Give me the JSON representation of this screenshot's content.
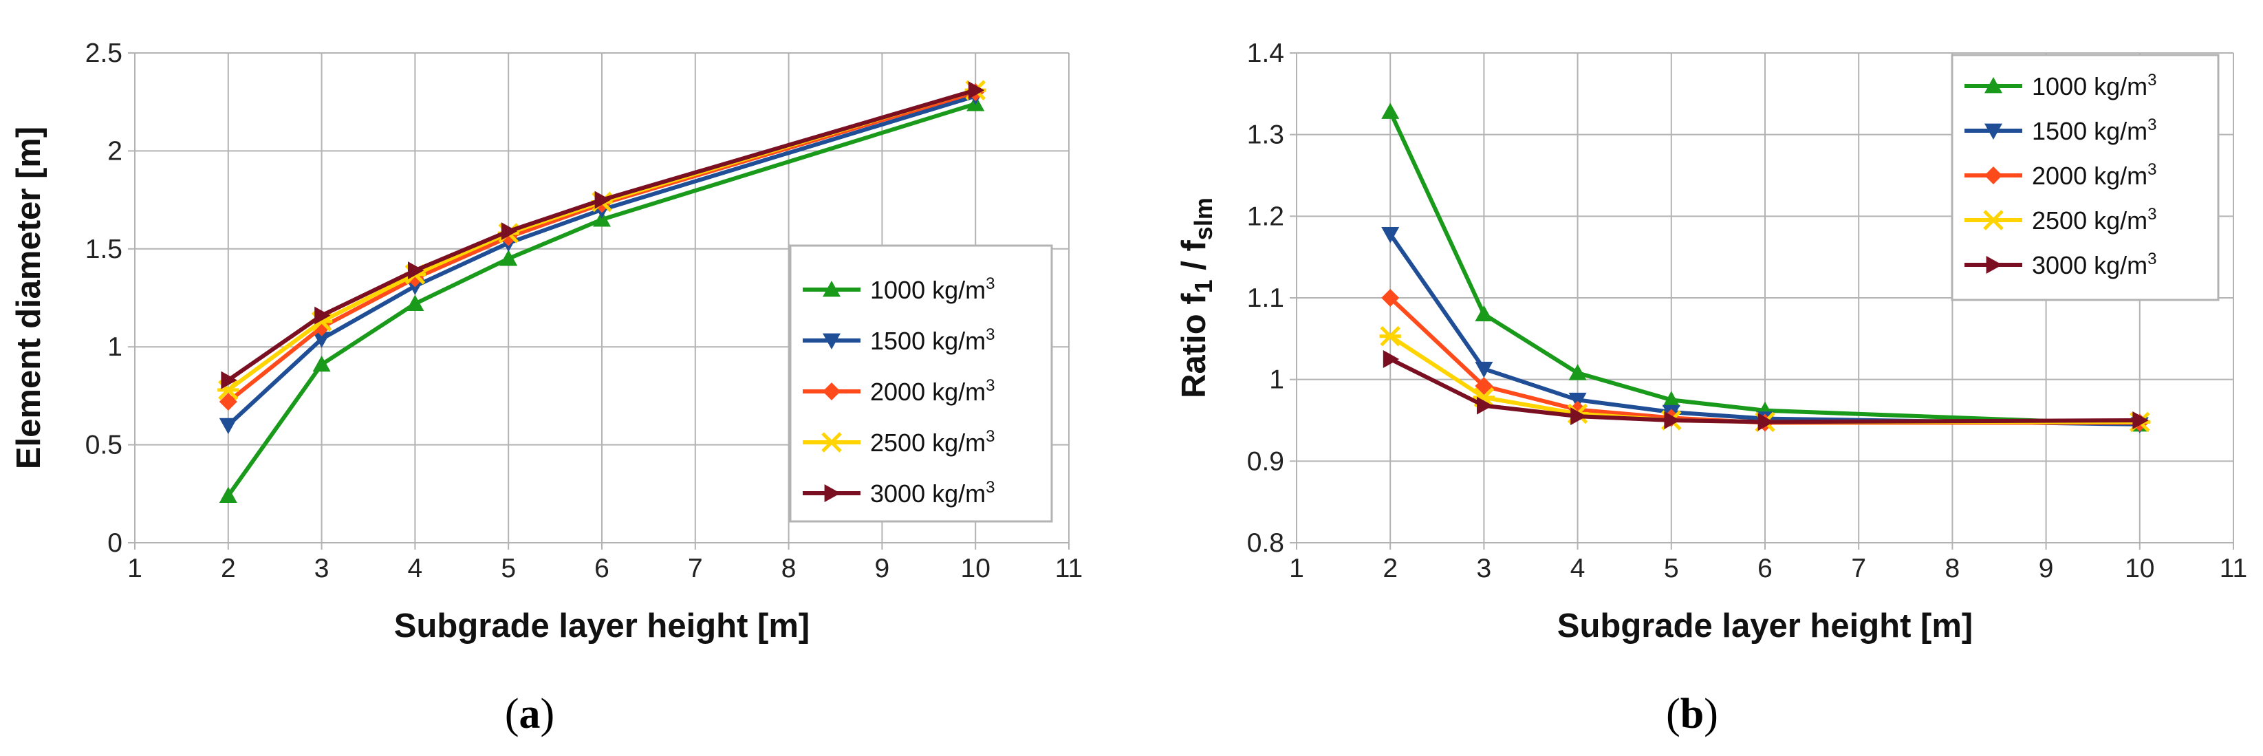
{
  "chart_data": [
    {
      "type": "line",
      "panel": "a",
      "caption_open": "(",
      "caption_letter": "a",
      "caption_close": ")",
      "xlabel": "Subgrade layer height  [m]",
      "ylabel": "Element diameter  [m]",
      "xlim": [
        1,
        11
      ],
      "ylim": [
        0,
        2.5
      ],
      "xticks": [
        1,
        2,
        3,
        4,
        5,
        6,
        7,
        8,
        9,
        10,
        11
      ],
      "yticks": [
        0,
        0.5,
        1,
        1.5,
        2,
        2.5
      ],
      "ytick_labels": [
        "0",
        "0.5",
        "1",
        "1.5",
        "2",
        "2.5"
      ],
      "grid": true,
      "legend_position": "right-middle",
      "x": [
        2,
        3,
        4,
        5,
        6,
        10
      ],
      "series": [
        {
          "name": "1000 kg/m³",
          "label_num": "1000",
          "label_unit": "kg/m",
          "label_sup": "3",
          "color": "#1a9a1a",
          "marker": "triangle-up",
          "values": [
            0.24,
            0.91,
            1.22,
            1.45,
            1.65,
            2.24
          ]
        },
        {
          "name": "1500 kg/m³",
          "label_num": "1500",
          "label_unit": "kg/m",
          "label_sup": "3",
          "color": "#1f4e96",
          "marker": "triangle-down",
          "values": [
            0.6,
            1.04,
            1.31,
            1.53,
            1.7,
            2.28
          ]
        },
        {
          "name": "2000 kg/m³",
          "label_num": "2000",
          "label_unit": "kg/m",
          "label_sup": "3",
          "color": "#ff4a1c",
          "marker": "diamond",
          "values": [
            0.72,
            1.1,
            1.35,
            1.56,
            1.73,
            2.3
          ]
        },
        {
          "name": "2500 kg/m³",
          "label_num": "2500",
          "label_unit": "kg/m",
          "label_sup": "3",
          "color": "#ffd400",
          "marker": "x",
          "values": [
            0.78,
            1.13,
            1.37,
            1.58,
            1.74,
            2.31
          ]
        },
        {
          "name": "3000 kg/m³",
          "label_num": "3000",
          "label_unit": "kg/m",
          "label_sup": "3",
          "color": "#7a0f22",
          "marker": "triangle-right",
          "values": [
            0.83,
            1.16,
            1.39,
            1.59,
            1.75,
            2.31
          ]
        }
      ]
    },
    {
      "type": "line",
      "panel": "b",
      "caption_open": "(",
      "caption_letter": "b",
      "caption_close": ")",
      "xlabel": "Subgrade layer height  [m]",
      "ylabel_main": "Ratio f",
      "ylabel_sub1": "1",
      "ylabel_mid": " / f",
      "ylabel_sub2": "slm",
      "xlim": [
        1,
        11
      ],
      "ylim": [
        0.8,
        1.4
      ],
      "xticks": [
        1,
        2,
        3,
        4,
        5,
        6,
        7,
        8,
        9,
        10,
        11
      ],
      "yticks": [
        0.8,
        0.9,
        1.0,
        1.1,
        1.2,
        1.3,
        1.4
      ],
      "ytick_labels": [
        "0.8",
        "0.9",
        "1",
        "1.1",
        "1.2",
        "1.3",
        "1.4"
      ],
      "grid": true,
      "legend_position": "top-right",
      "x": [
        2,
        3,
        4,
        5,
        6,
        10
      ],
      "series": [
        {
          "name": "1000 kg/m³",
          "label_num": "1000",
          "label_unit": "kg/m",
          "label_sup": "3",
          "color": "#1a9a1a",
          "marker": "triangle-up",
          "values": [
            1.328,
            1.08,
            1.008,
            0.975,
            0.962,
            0.945
          ]
        },
        {
          "name": "1500 kg/m³",
          "label_num": "1500",
          "label_unit": "kg/m",
          "label_sup": "3",
          "color": "#1f4e96",
          "marker": "triangle-down",
          "values": [
            1.178,
            1.013,
            0.975,
            0.96,
            0.952,
            0.945
          ]
        },
        {
          "name": "2000 kg/m³",
          "label_num": "2000",
          "label_unit": "kg/m",
          "label_sup": "3",
          "color": "#ff4a1c",
          "marker": "diamond",
          "values": [
            1.1,
            0.992,
            0.963,
            0.953,
            0.947,
            0.947
          ]
        },
        {
          "name": "2500 kg/m³",
          "label_num": "2500",
          "label_unit": "kg/m",
          "label_sup": "3",
          "color": "#ffd400",
          "marker": "x",
          "values": [
            1.053,
            0.978,
            0.958,
            0.95,
            0.948,
            0.948
          ]
        },
        {
          "name": "3000 kg/m³",
          "label_num": "3000",
          "label_unit": "kg/m",
          "label_sup": "3",
          "color": "#7a0f22",
          "marker": "triangle-right",
          "values": [
            1.025,
            0.968,
            0.955,
            0.95,
            0.948,
            0.95
          ]
        }
      ]
    }
  ]
}
